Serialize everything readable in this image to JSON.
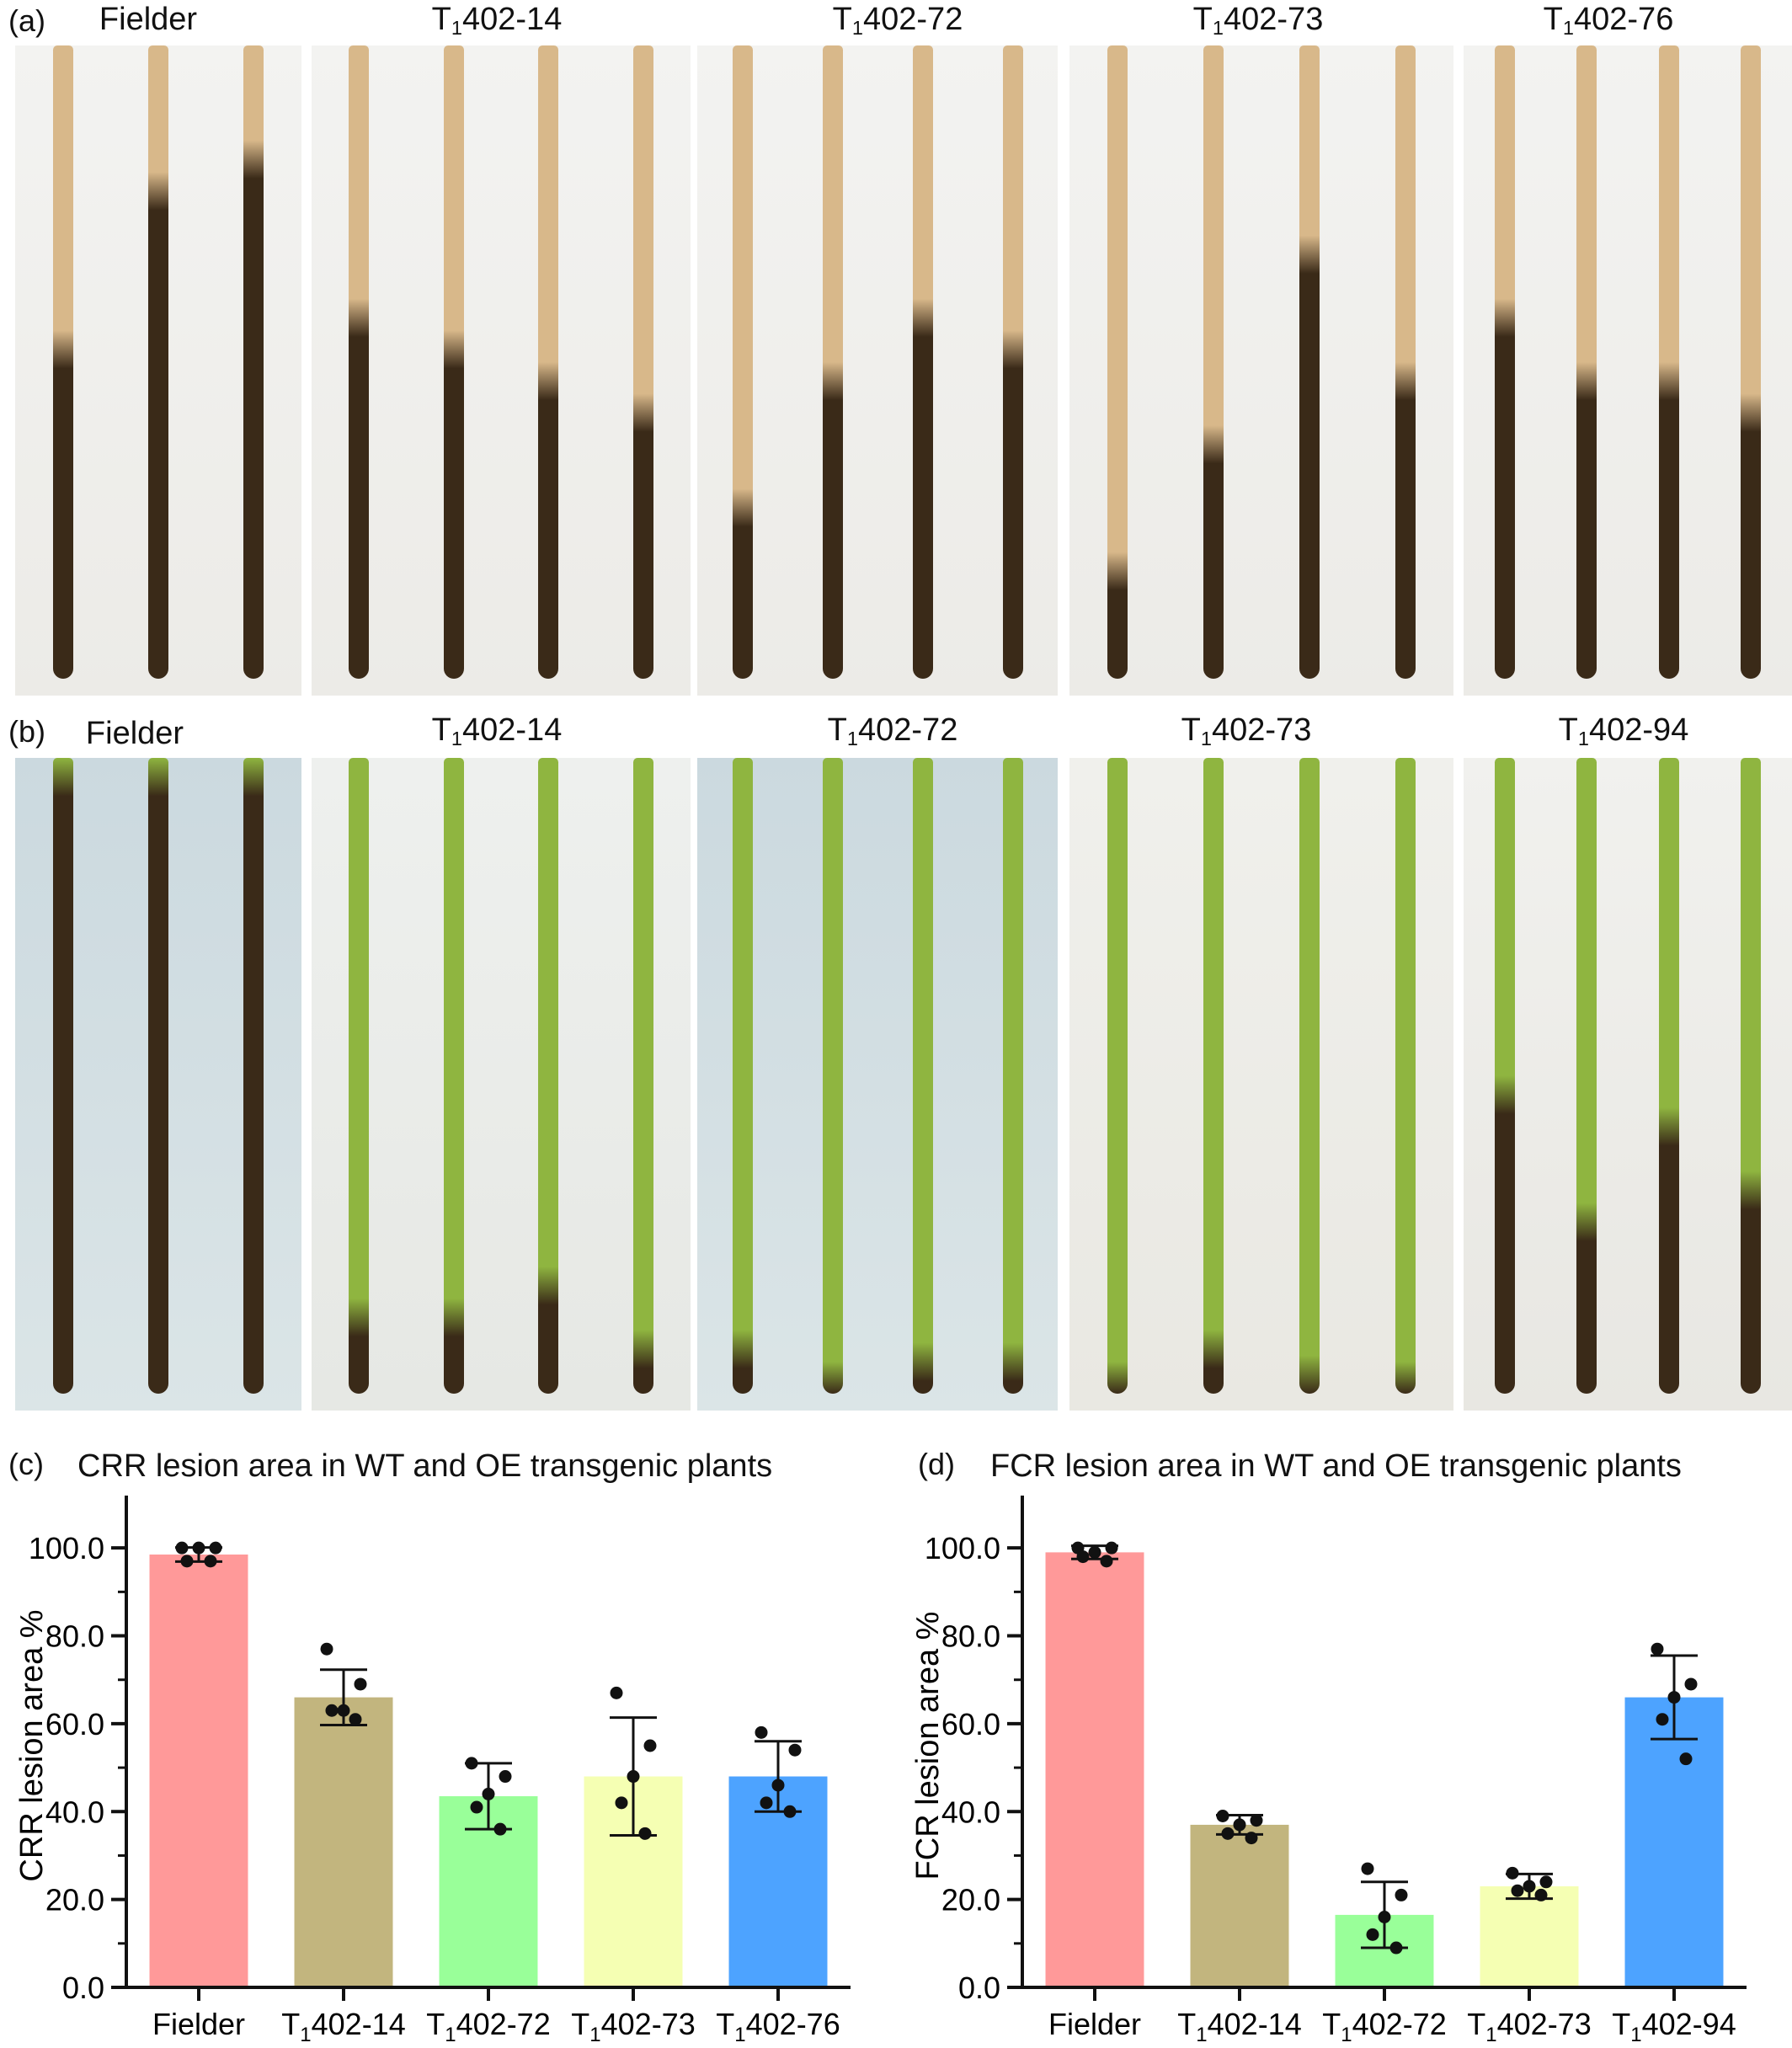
{
  "panels": {
    "a": {
      "label": "(a)",
      "columns": [
        {
          "name": "Fielder"
        },
        {
          "name_main": "T",
          "name_sub": "1",
          "name_rest": "402-14"
        },
        {
          "name_main": "T",
          "name_sub": "1",
          "name_rest": "402-72"
        },
        {
          "name_main": "T",
          "name_sub": "1",
          "name_rest": "402-73"
        },
        {
          "name_main": "T",
          "name_sub": "1",
          "name_rest": "402-76"
        }
      ]
    },
    "b": {
      "label": "(b)",
      "columns": [
        {
          "name": "Fielder"
        },
        {
          "name_main": "T",
          "name_sub": "1",
          "name_rest": "402-14"
        },
        {
          "name_main": "T",
          "name_sub": "1",
          "name_rest": "402-72"
        },
        {
          "name_main": "T",
          "name_sub": "1",
          "name_rest": "402-73"
        },
        {
          "name_main": "T",
          "name_sub": "1",
          "name_rest": "402-94"
        }
      ]
    },
    "c": {
      "label": "(c)"
    },
    "d": {
      "label": "(d)"
    }
  },
  "colors": {
    "fielder": "#ff9999",
    "line14": "#c2b57e",
    "line72": "#99ff99",
    "line73": "#f5ffb3",
    "line_last": "#4da3ff",
    "stem_green": "#8fb540",
    "stem_straw": "#d8b88a",
    "lesion_dark": "#3a2a18"
  },
  "chart_data": [
    {
      "type": "bar",
      "title": "CRR lesion area in WT and OE transgenic plants",
      "ylabel": "CRR lesion area %",
      "ylim": [
        0,
        110
      ],
      "yticks": [
        "0.0",
        "20.0",
        "40.0",
        "60.0",
        "80.0",
        "100.0"
      ],
      "categories": [
        {
          "main": "Fielder",
          "sub": "",
          "rest": ""
        },
        {
          "main": "T",
          "sub": "1",
          "rest": "402-14"
        },
        {
          "main": "T",
          "sub": "1",
          "rest": "402-72"
        },
        {
          "main": "T",
          "sub": "1",
          "rest": "402-73"
        },
        {
          "main": "T",
          "sub": "1",
          "rest": "402-76"
        }
      ],
      "values": [
        98.5,
        66,
        43.5,
        48,
        48
      ],
      "errors": [
        1.6,
        6.3,
        7.5,
        13.4,
        8
      ],
      "points": [
        [
          100,
          100,
          100,
          97,
          97
        ],
        [
          77,
          69,
          63,
          63,
          61
        ],
        [
          51,
          48,
          44,
          41,
          36
        ],
        [
          67,
          55,
          48,
          42,
          35
        ],
        [
          58,
          54,
          46,
          42,
          40
        ]
      ]
    },
    {
      "type": "bar",
      "title": "FCR lesion area in WT and OE transgenic plants",
      "ylabel": "FCR lesion area %",
      "ylim": [
        0,
        110
      ],
      "yticks": [
        "0.0",
        "20.0",
        "40.0",
        "60.0",
        "80.0",
        "100.0"
      ],
      "categories": [
        {
          "main": "Fielder",
          "sub": "",
          "rest": ""
        },
        {
          "main": "T",
          "sub": "1",
          "rest": "402-14"
        },
        {
          "main": "T",
          "sub": "1",
          "rest": "402-72"
        },
        {
          "main": "T",
          "sub": "1",
          "rest": "402-73"
        },
        {
          "main": "T",
          "sub": "1",
          "rest": "402-94"
        }
      ],
      "values": [
        99,
        37,
        16.5,
        23,
        66
      ],
      "errors": [
        1.5,
        2.2,
        7.5,
        2.8,
        9.5
      ],
      "points": [
        [
          100,
          100,
          99,
          98,
          97
        ],
        [
          39,
          38,
          37,
          35,
          34
        ],
        [
          27,
          21,
          16,
          12,
          9
        ],
        [
          26,
          24,
          23,
          22,
          21
        ],
        [
          77,
          69,
          66,
          61,
          52
        ]
      ]
    }
  ]
}
